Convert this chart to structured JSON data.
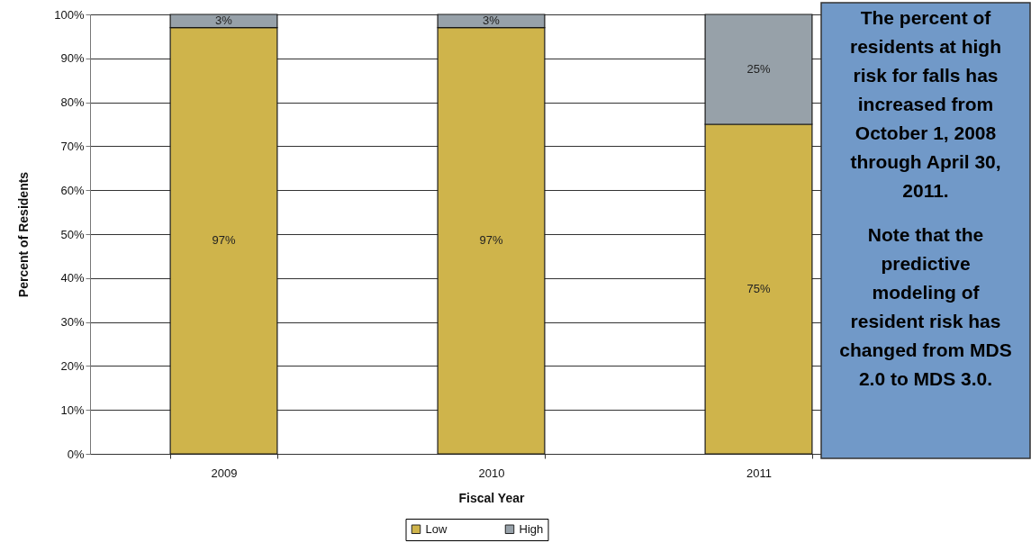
{
  "chart_data": {
    "type": "bar",
    "stacked": true,
    "xlabel": "Fiscal Year",
    "ylabel": "Percent of Residents",
    "categories": [
      "2009",
      "2010",
      "2011"
    ],
    "series": [
      {
        "name": "Low",
        "color": "#cfb44b",
        "values": [
          97,
          97,
          75
        ],
        "value_labels": [
          "97%",
          "97%",
          "75%"
        ]
      },
      {
        "name": "High",
        "color": "#97a1a9",
        "values": [
          3,
          3,
          25
        ],
        "value_labels": [
          "3%",
          "3%",
          "25%"
        ]
      }
    ],
    "ylim": [
      0,
      100
    ],
    "yticks": [
      {
        "value": 0,
        "label": "0%"
      },
      {
        "value": 10,
        "label": "10%"
      },
      {
        "value": 20,
        "label": "20%"
      },
      {
        "value": 30,
        "label": "30%"
      },
      {
        "value": 40,
        "label": "40%"
      },
      {
        "value": 50,
        "label": "50%"
      },
      {
        "value": 60,
        "label": "60%"
      },
      {
        "value": 70,
        "label": "70%"
      },
      {
        "value": 80,
        "label": "80%"
      },
      {
        "value": 90,
        "label": "90%"
      },
      {
        "value": 100,
        "label": "100%"
      }
    ],
    "grid": "y",
    "legend": "bottom",
    "annotations": [
      "The percent of residents at high risk for falls has increased from October 1, 2008 through April 30, 2011.",
      "Note that the predictive modeling of resident risk has changed from MDS 2.0 to MDS 3.0."
    ]
  }
}
